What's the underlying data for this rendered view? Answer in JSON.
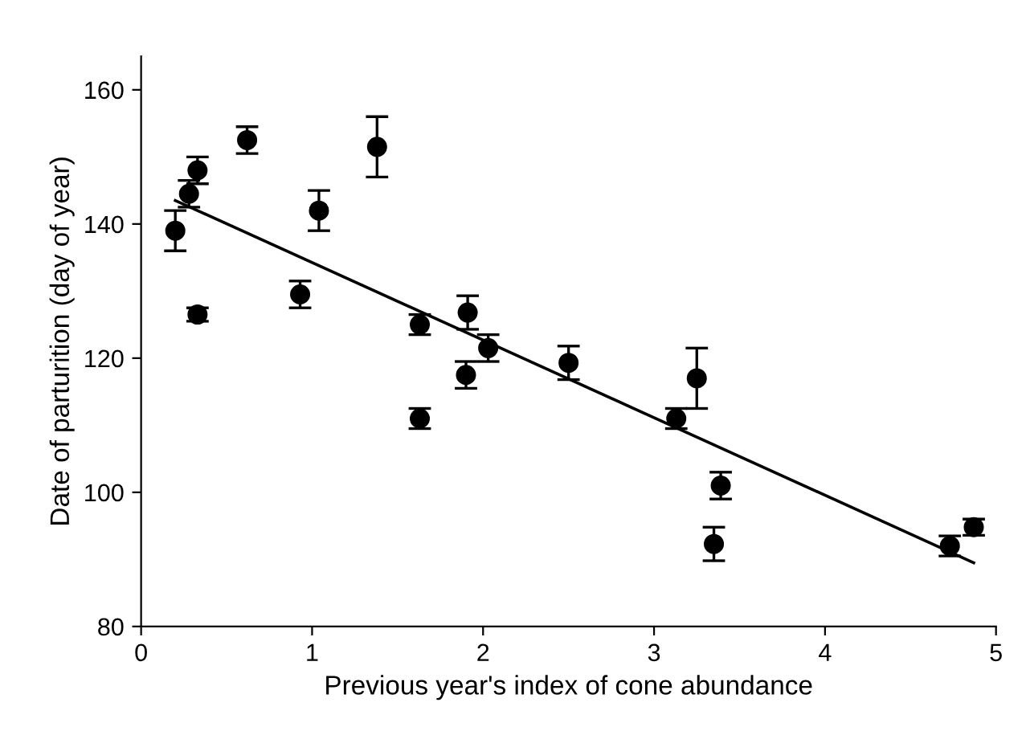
{
  "chart_data": {
    "type": "scatter",
    "xlabel": "Previous year's index of cone abundance",
    "ylabel": "Date of parturition (day of year)",
    "xlim": [
      0,
      5
    ],
    "ylim": [
      80,
      165
    ],
    "xticks": [
      0,
      1,
      2,
      3,
      4,
      5
    ],
    "yticks": [
      80,
      100,
      120,
      140,
      160
    ],
    "grid": false,
    "legend": false,
    "marker": "circle",
    "series": [
      {
        "color": "#000000",
        "x": [
          0.2,
          0.28,
          0.33,
          0.33,
          0.62,
          0.93,
          1.04,
          1.38,
          1.63,
          1.63,
          1.9,
          1.91,
          2.03,
          2.5,
          3.13,
          3.25,
          3.35,
          3.39,
          4.73,
          4.87
        ],
        "values": [
          139,
          144.5,
          148,
          126.5,
          152.5,
          129.5,
          142,
          151.5,
          125,
          111,
          117.5,
          126.8,
          121.5,
          119.3,
          111,
          117,
          92.3,
          101,
          92,
          94.8
        ],
        "errors": [
          3,
          2,
          2,
          1,
          2,
          2,
          3,
          4.5,
          1.5,
          1.5,
          2,
          2.5,
          2,
          2.5,
          1.5,
          4.5,
          2.5,
          2,
          1.5,
          1.2
        ]
      },
      {
        "type": "line",
        "color": "#000000",
        "x": [
          0.2,
          4.87
        ],
        "values": [
          143.5,
          89.5
        ],
        "marker": "none"
      }
    ]
  }
}
